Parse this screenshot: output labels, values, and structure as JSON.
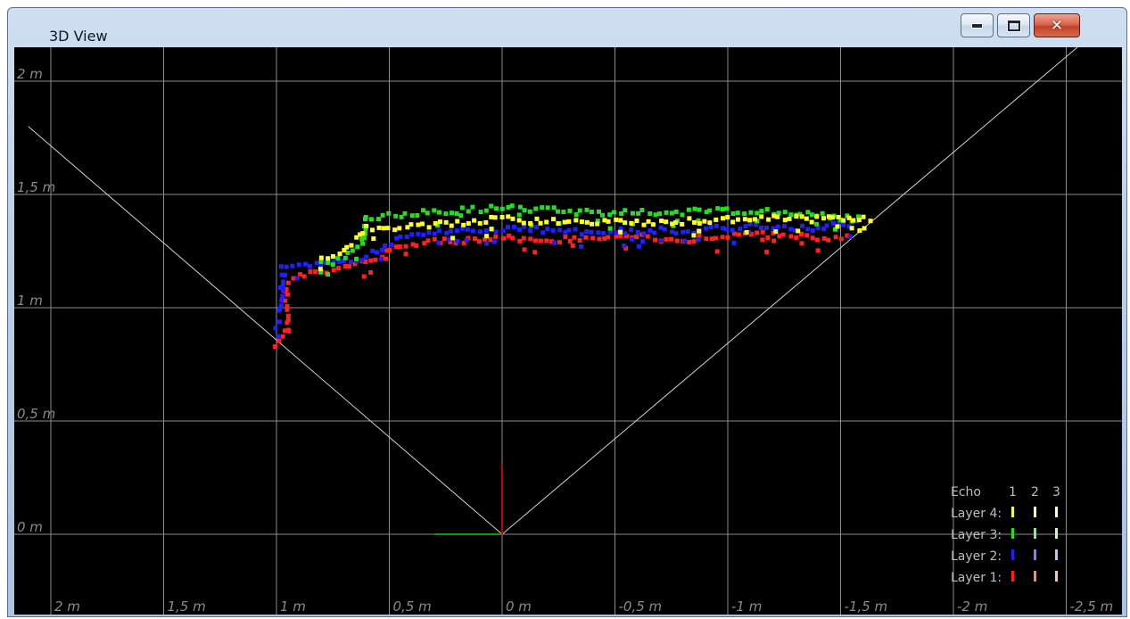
{
  "window": {
    "title": "3D View"
  },
  "titlebar_buttons": {
    "minimize": "minimize-icon",
    "maximize": "maximize-icon",
    "close": "close-icon"
  },
  "colors": {
    "background": "#000000",
    "grid": "#8c8c8c",
    "fov_lines": "#cfcfcf",
    "axis_x": "#00a000",
    "axis_y": "#c00000",
    "layer1": "#ff2020",
    "layer2": "#2020ff",
    "layer3": "#20e020",
    "layer4": "#ffff20"
  },
  "chart_data": {
    "type": "scatter",
    "title": "",
    "xlabel": "",
    "ylabel": "",
    "x_axis_reversed": true,
    "xlim": [
      2.0,
      -2.7
    ],
    "ylim": [
      -0.35,
      2.15
    ],
    "grid": true,
    "x_ticks": [
      {
        "value": 2.0,
        "label": "2 m"
      },
      {
        "value": 1.5,
        "label": "1,5 m"
      },
      {
        "value": 1.0,
        "label": "1 m"
      },
      {
        "value": 0.5,
        "label": "0,5 m"
      },
      {
        "value": 0.0,
        "label": "0 m"
      },
      {
        "value": -0.5,
        "label": "-0,5 m"
      },
      {
        "value": -1.0,
        "label": "-1 m"
      },
      {
        "value": -1.5,
        "label": "-1,5 m"
      },
      {
        "value": -2.0,
        "label": "-2 m"
      },
      {
        "value": -2.5,
        "label": "-2,5 m"
      }
    ],
    "y_ticks": [
      {
        "value": 2.0,
        "label": "2 m"
      },
      {
        "value": 1.5,
        "label": "1,5 m"
      },
      {
        "value": 1.0,
        "label": "1 m"
      },
      {
        "value": 0.5,
        "label": "0,5 m"
      },
      {
        "value": 0.0,
        "label": "0 m"
      }
    ],
    "sensor_origin": [
      0,
      0
    ],
    "fov_rays": [
      {
        "end": [
          2.1,
          1.8
        ]
      },
      {
        "end": [
          -2.55,
          2.15
        ]
      }
    ],
    "axes_gizmo": {
      "x_len": 0.3,
      "y_len": 0.31
    },
    "series": [
      {
        "name": "Layer 1",
        "profile": [
          [
            1.0,
            0.84
          ],
          [
            0.97,
            0.88
          ],
          [
            0.95,
            0.95
          ],
          [
            0.96,
            1.04
          ],
          [
            0.95,
            1.12
          ],
          [
            0.85,
            1.15
          ],
          [
            0.7,
            1.18
          ],
          [
            0.6,
            1.2
          ],
          [
            0.45,
            1.28
          ],
          [
            0.3,
            1.29
          ],
          [
            0.15,
            1.3
          ],
          [
            0.0,
            1.31
          ],
          [
            -0.2,
            1.3
          ],
          [
            -0.4,
            1.3
          ],
          [
            -0.6,
            1.31
          ],
          [
            -0.8,
            1.3
          ],
          [
            -1.0,
            1.32
          ],
          [
            -1.2,
            1.32
          ],
          [
            -1.4,
            1.31
          ],
          [
            -1.55,
            1.31
          ]
        ]
      },
      {
        "name": "Layer 2",
        "profile": [
          [
            1.0,
            0.9
          ],
          [
            0.98,
            1.0
          ],
          [
            0.97,
            1.1
          ],
          [
            0.98,
            1.18
          ],
          [
            0.85,
            1.18
          ],
          [
            0.7,
            1.2
          ],
          [
            0.6,
            1.23
          ],
          [
            0.45,
            1.31
          ],
          [
            0.3,
            1.33
          ],
          [
            0.15,
            1.34
          ],
          [
            0.0,
            1.35
          ],
          [
            -0.2,
            1.34
          ],
          [
            -0.4,
            1.33
          ],
          [
            -0.6,
            1.34
          ],
          [
            -0.8,
            1.34
          ],
          [
            -1.0,
            1.35
          ],
          [
            -1.2,
            1.36
          ],
          [
            -1.4,
            1.35
          ],
          [
            -1.6,
            1.38
          ]
        ]
      },
      {
        "name": "Layer 3",
        "profile": [
          [
            0.8,
            1.2
          ],
          [
            0.7,
            1.23
          ],
          [
            0.62,
            1.27
          ],
          [
            0.6,
            1.4
          ],
          [
            0.45,
            1.41
          ],
          [
            0.3,
            1.42
          ],
          [
            0.15,
            1.43
          ],
          [
            0.0,
            1.44
          ],
          [
            -0.2,
            1.43
          ],
          [
            -0.4,
            1.42
          ],
          [
            -0.6,
            1.42
          ],
          [
            -0.8,
            1.42
          ],
          [
            -1.0,
            1.43
          ],
          [
            -1.2,
            1.42
          ],
          [
            -1.4,
            1.41
          ],
          [
            -1.6,
            1.39
          ]
        ]
      },
      {
        "name": "Layer 4",
        "profile": [
          [
            0.8,
            1.22
          ],
          [
            0.7,
            1.25
          ],
          [
            0.6,
            1.35
          ],
          [
            0.45,
            1.35
          ],
          [
            0.3,
            1.37
          ],
          [
            0.15,
            1.38
          ],
          [
            0.0,
            1.39
          ],
          [
            -0.2,
            1.38
          ],
          [
            -0.4,
            1.38
          ],
          [
            -0.6,
            1.37
          ],
          [
            -0.8,
            1.38
          ],
          [
            -1.0,
            1.39
          ],
          [
            -1.2,
            1.4
          ],
          [
            -1.4,
            1.39
          ],
          [
            -1.65,
            1.39
          ]
        ]
      }
    ],
    "legend": {
      "placement": "bottom-right",
      "header": "Echo",
      "echo_labels": [
        "1",
        "2",
        "3"
      ],
      "rows": [
        {
          "label": "Layer 4:",
          "colors": [
            "#ffff20",
            "#ffff80",
            "#ffffc0"
          ]
        },
        {
          "label": "Layer 3:",
          "colors": [
            "#20e020",
            "#80f080",
            "#c0ffc0"
          ]
        },
        {
          "label": "Layer 2:",
          "colors": [
            "#2020ff",
            "#8080ff",
            "#c0c0ff"
          ]
        },
        {
          "label": "Layer 1:",
          "colors": [
            "#ff2020",
            "#ff8080",
            "#ffc0c0"
          ]
        }
      ]
    }
  }
}
